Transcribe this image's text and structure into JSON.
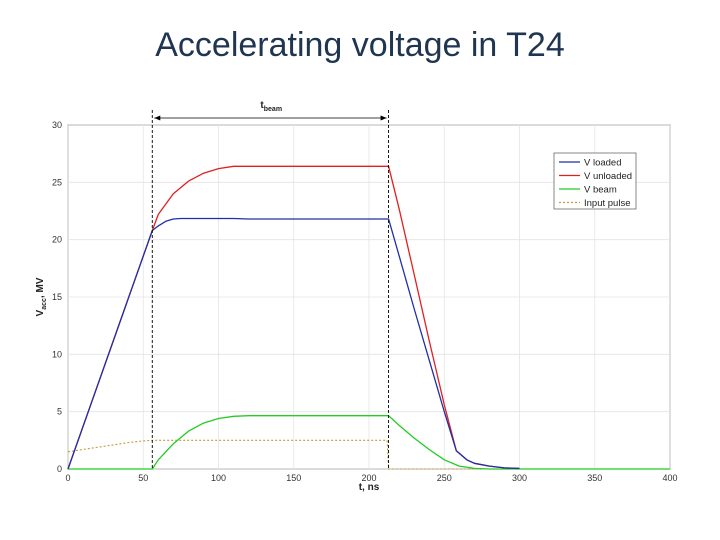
{
  "slide": {
    "title": "Accelerating voltage in T24"
  },
  "chart_data": {
    "type": "line",
    "xlabel": "t, ns",
    "ylabel_main": "V",
    "ylabel_sub": "acc",
    "ylabel_unit": ", MV",
    "xlim": [
      0,
      400
    ],
    "ylim": [
      0,
      30
    ],
    "xticks": [
      0,
      50,
      100,
      150,
      200,
      250,
      300,
      350,
      400
    ],
    "yticks": [
      0,
      5,
      10,
      15,
      20,
      25,
      30
    ],
    "grid": true,
    "legend_position": "top-right",
    "annotation": {
      "label_main": "t",
      "label_sub": "beam",
      "x_start": 56,
      "x_end": 213
    },
    "series": [
      {
        "name": "V loaded",
        "color": "#1f2fa8",
        "dash": "solid",
        "x": [
          0,
          56,
          60,
          65,
          70,
          75,
          80,
          90,
          100,
          110,
          120,
          150,
          180,
          200,
          213,
          220,
          230,
          240,
          250,
          258,
          265,
          270,
          280,
          290,
          300
        ],
        "y": [
          0,
          20.8,
          21.2,
          21.6,
          21.8,
          21.85,
          21.85,
          21.85,
          21.85,
          21.85,
          21.8,
          21.8,
          21.8,
          21.8,
          21.8,
          18.6,
          14.0,
          9.5,
          5.0,
          1.6,
          0.8,
          0.5,
          0.25,
          0.1,
          0.05
        ]
      },
      {
        "name": "V unloaded",
        "color": "#e02020",
        "dash": "solid",
        "x": [
          0,
          56,
          60,
          70,
          80,
          90,
          100,
          110,
          120,
          150,
          180,
          200,
          213,
          220,
          230,
          240,
          250,
          258,
          265,
          270,
          280,
          290,
          300
        ],
        "y": [
          0,
          20.8,
          22.2,
          24.0,
          25.1,
          25.8,
          26.2,
          26.4,
          26.4,
          26.4,
          26.4,
          26.4,
          26.4,
          22.7,
          17.0,
          11.2,
          5.6,
          1.6,
          0.8,
          0.5,
          0.25,
          0.1,
          0.05
        ]
      },
      {
        "name": "V beam",
        "color": "#22cc22",
        "dash": "solid",
        "x": [
          0,
          55,
          56,
          60,
          70,
          80,
          90,
          100,
          110,
          120,
          150,
          180,
          200,
          213,
          220,
          230,
          240,
          250,
          260,
          270,
          280,
          300,
          400
        ],
        "y": [
          0,
          0,
          0,
          0.8,
          2.2,
          3.3,
          4.0,
          4.4,
          4.6,
          4.65,
          4.65,
          4.65,
          4.65,
          4.65,
          3.8,
          2.7,
          1.7,
          0.8,
          0.25,
          0.05,
          0,
          0,
          0
        ]
      },
      {
        "name": "Input pulse",
        "color": "#c8963c",
        "dash": "dotted",
        "x": [
          0,
          10,
          20,
          30,
          40,
          50,
          56,
          80,
          120,
          160,
          200,
          212,
          213,
          250,
          300,
          400
        ],
        "y": [
          1.5,
          1.7,
          1.9,
          2.1,
          2.3,
          2.45,
          2.5,
          2.5,
          2.5,
          2.5,
          2.5,
          2.5,
          0,
          0,
          0,
          0
        ]
      }
    ]
  }
}
